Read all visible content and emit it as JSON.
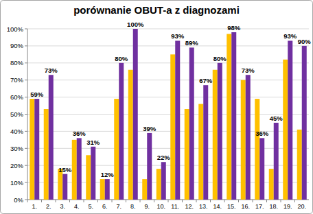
{
  "chart_data": {
    "type": "bar",
    "title": "porównanie OBUT-a z diagnozami",
    "categories": [
      "1.",
      "2.",
      "3.",
      "4.",
      "5.",
      "6.",
      "7.",
      "8.",
      "9.",
      "10.",
      "11.",
      "12.",
      "13.",
      "14.",
      "15.",
      "16.",
      "17.",
      "18.",
      "19.",
      "20."
    ],
    "series": [
      {
        "color": "#FFC000",
        "values": [
          59,
          53,
          18,
          35,
          26,
          12,
          59,
          76,
          12,
          18,
          85,
          53,
          56,
          76,
          97,
          70,
          59,
          18,
          82,
          41
        ]
      },
      {
        "color": "#7030A0",
        "values": [
          59,
          73,
          15,
          36,
          31,
          12,
          80,
          100,
          39,
          22,
          93,
          89,
          67,
          80,
          98,
          73,
          36,
          45,
          93,
          90
        ],
        "value_labels": [
          "59%",
          "73%",
          "15%",
          "36%",
          "31%",
          "12%",
          "80%",
          "100%",
          "39%",
          "22%",
          "93%",
          "89%",
          "67%",
          "80%",
          "98%",
          "73%",
          "36%",
          "45%",
          "93%",
          "90%"
        ]
      }
    ],
    "ylim": [
      0,
      100
    ],
    "yticks": [
      {
        "value": 0,
        "label": "0%"
      },
      {
        "value": 10,
        "label": "10%"
      },
      {
        "value": 20,
        "label": "20%"
      },
      {
        "value": 30,
        "label": "30%"
      },
      {
        "value": 40,
        "label": "40%"
      },
      {
        "value": 50,
        "label": "50%"
      },
      {
        "value": 60,
        "label": "60%"
      },
      {
        "value": 70,
        "label": "70%"
      },
      {
        "value": 80,
        "label": "80%"
      },
      {
        "value": 90,
        "label": "90%"
      },
      {
        "value": 100,
        "label": "100%"
      }
    ],
    "grid": true,
    "data_labels": true
  }
}
